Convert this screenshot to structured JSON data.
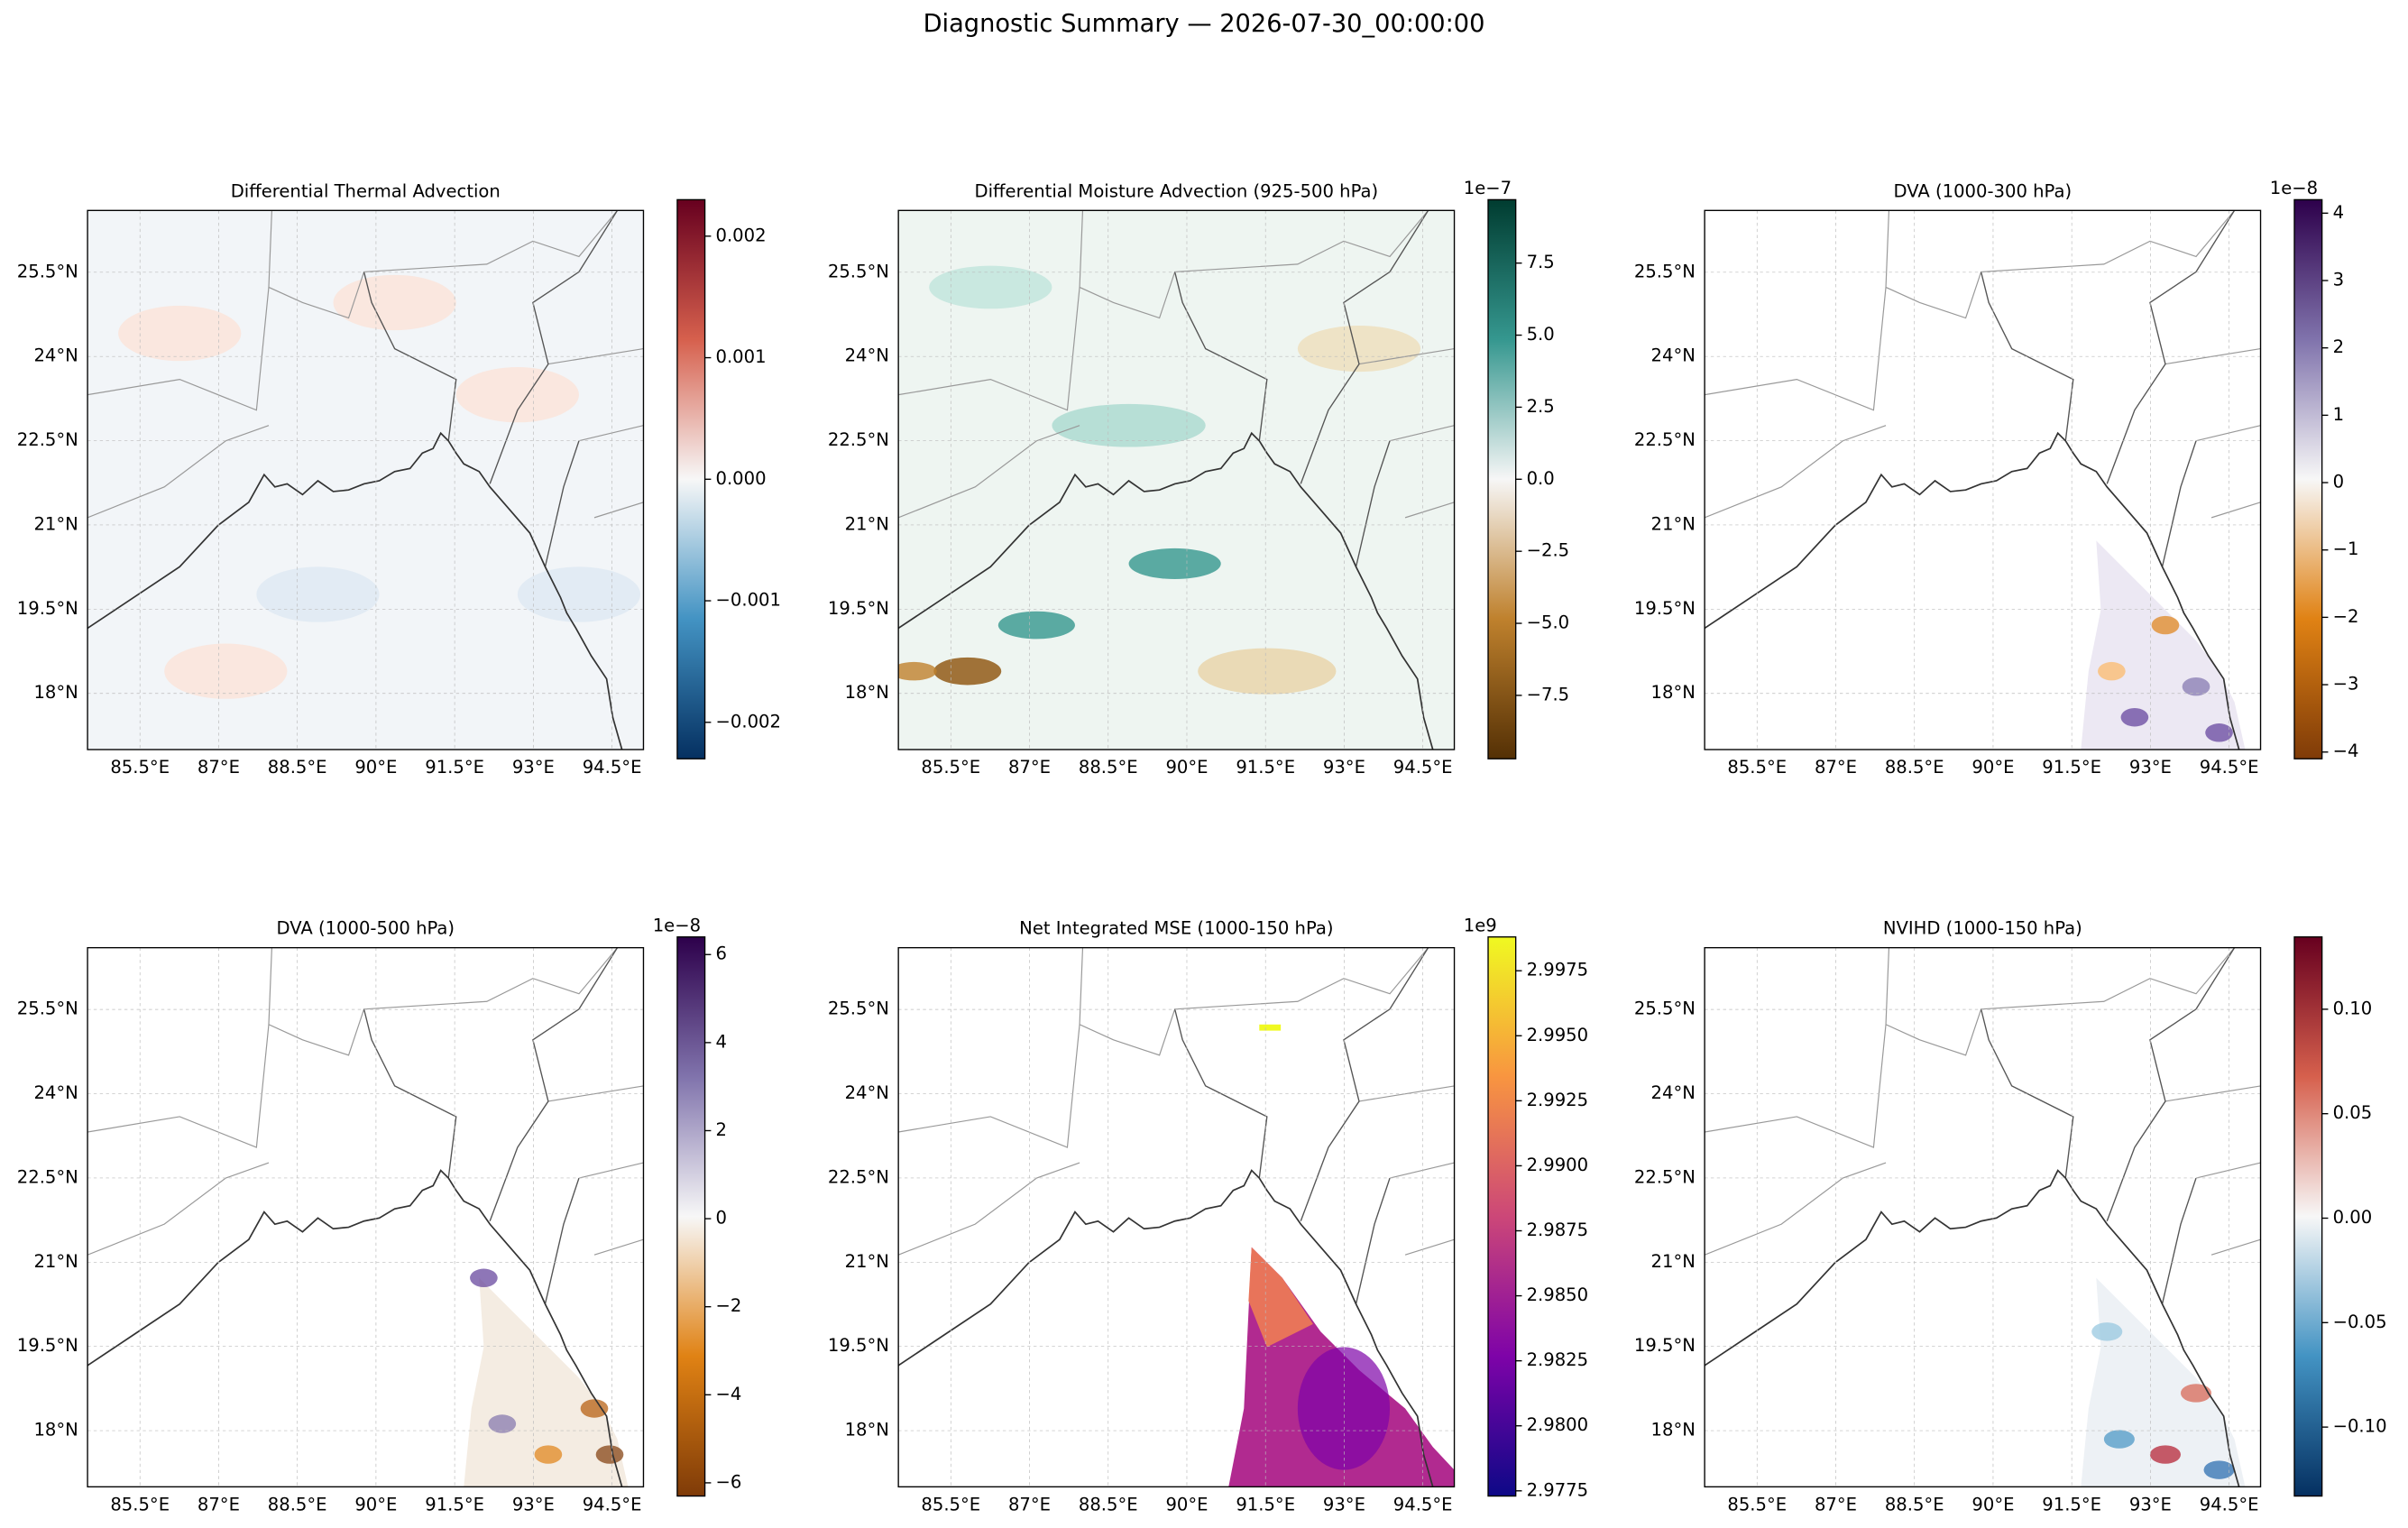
{
  "title": "Diagnostic Summary — 2026-07-30_00:00:00",
  "chart_data": [
    {
      "type": "map",
      "title": "Differential Thermal Advection",
      "xlim": [
        84.5,
        95.1
      ],
      "ylim": [
        17.0,
        26.6
      ],
      "xticks": [
        {
          "value": 85.5,
          "label": "85.5°E"
        },
        {
          "value": 87,
          "label": "87°E"
        },
        {
          "value": 88.5,
          "label": "88.5°E"
        },
        {
          "value": 90,
          "label": "90°E"
        },
        {
          "value": 91.5,
          "label": "91.5°E"
        },
        {
          "value": 93,
          "label": "93°E"
        },
        {
          "value": 94.5,
          "label": "94.5°E"
        }
      ],
      "yticks": [
        {
          "value": 18,
          "label": "18°N"
        },
        {
          "value": 19.5,
          "label": "19.5°N"
        },
        {
          "value": 21,
          "label": "21°N"
        },
        {
          "value": 22.5,
          "label": "22.5°N"
        },
        {
          "value": 24,
          "label": "24°N"
        },
        {
          "value": 25.5,
          "label": "25.5°N"
        }
      ],
      "clim": [
        -0.0023,
        0.0023
      ],
      "cticks": [
        {
          "value": -0.002,
          "label": "−0.002"
        },
        {
          "value": -0.001,
          "label": "−0.001"
        },
        {
          "value": 0,
          "label": "0.000"
        },
        0.001,
        0.002
      ],
      "cmap": [
        "#053061",
        "#4393c3",
        "#f7f7f7",
        "#d6604d",
        "#67001f"
      ]
    },
    {
      "type": "map",
      "title": "Differential Moisture Advection (925-500 hPa)",
      "xlim": [
        84.5,
        95.1
      ],
      "ylim": [
        17.0,
        26.6
      ],
      "xticks": [
        {
          "value": 85.5,
          "label": "85.5°E"
        },
        {
          "value": 87,
          "label": "87°E"
        },
        {
          "value": 88.5,
          "label": "88.5°E"
        },
        {
          "value": 90,
          "label": "90°E"
        },
        {
          "value": 91.5,
          "label": "91.5°E"
        },
        {
          "value": 93,
          "label": "93°E"
        },
        {
          "value": 94.5,
          "label": "94.5°E"
        }
      ],
      "yticks": [
        {
          "value": 18,
          "label": "18°N"
        },
        {
          "value": 19.5,
          "label": "19.5°N"
        },
        {
          "value": 21,
          "label": "21°N"
        },
        {
          "value": 22.5,
          "label": "22.5°N"
        },
        {
          "value": 24,
          "label": "24°N"
        },
        {
          "value": 25.5,
          "label": "25.5°N"
        }
      ],
      "clim": [
        -9.7,
        9.7
      ],
      "offset_label": "1e−7",
      "cticks": [
        {
          "value": -7.5,
          "label": "−7.5"
        },
        {
          "value": -5,
          "label": "−5.0"
        },
        {
          "value": -2.5,
          "label": "−2.5"
        },
        {
          "value": 0,
          "label": "0.0"
        },
        2.5,
        {
          "value": 5,
          "label": "5.0"
        },
        7.5
      ],
      "cmap": [
        "#543005",
        "#bf812d",
        "#f6f6f6",
        "#35978f",
        "#003c30"
      ]
    },
    {
      "type": "map",
      "title": "DVA (1000-300 hPa)",
      "xlim": [
        84.5,
        95.1
      ],
      "ylim": [
        17.0,
        26.6
      ],
      "xticks": [
        {
          "value": 85.5,
          "label": "85.5°E"
        },
        {
          "value": 87,
          "label": "87°E"
        },
        {
          "value": 88.5,
          "label": "88.5°E"
        },
        {
          "value": 90,
          "label": "90°E"
        },
        {
          "value": 91.5,
          "label": "91.5°E"
        },
        {
          "value": 93,
          "label": "93°E"
        },
        {
          "value": 94.5,
          "label": "94.5°E"
        }
      ],
      "yticks": [
        {
          "value": 18,
          "label": "18°N"
        },
        {
          "value": 19.5,
          "label": "19.5°N"
        },
        {
          "value": 21,
          "label": "21°N"
        },
        {
          "value": 22.5,
          "label": "22.5°N"
        },
        {
          "value": 24,
          "label": "24°N"
        },
        {
          "value": 25.5,
          "label": "25.5°N"
        }
      ],
      "clim": [
        -4.1,
        4.2
      ],
      "offset_label": "1e−8",
      "cticks": [
        {
          "value": -4,
          "label": "−4"
        },
        {
          "value": -3,
          "label": "−3"
        },
        {
          "value": -2,
          "label": "−2"
        },
        {
          "value": -1,
          "label": "−1"
        },
        0,
        1,
        2,
        3,
        4
      ],
      "cmap": [
        "#7f3b08",
        "#e08214",
        "#f7f7f7",
        "#8073ac",
        "#2d004b"
      ]
    },
    {
      "type": "map",
      "title": "DVA (1000-500 hPa)",
      "xlim": [
        84.5,
        95.1
      ],
      "ylim": [
        17.0,
        26.6
      ],
      "xticks": [
        {
          "value": 85.5,
          "label": "85.5°E"
        },
        {
          "value": 87,
          "label": "87°E"
        },
        {
          "value": 88.5,
          "label": "88.5°E"
        },
        {
          "value": 90,
          "label": "90°E"
        },
        {
          "value": 91.5,
          "label": "91.5°E"
        },
        {
          "value": 93,
          "label": "93°E"
        },
        {
          "value": 94.5,
          "label": "94.5°E"
        }
      ],
      "yticks": [
        {
          "value": 18,
          "label": "18°N"
        },
        {
          "value": 19.5,
          "label": "19.5°N"
        },
        {
          "value": 21,
          "label": "21°N"
        },
        {
          "value": 22.5,
          "label": "22.5°N"
        },
        {
          "value": 24,
          "label": "24°N"
        },
        {
          "value": 25.5,
          "label": "25.5°N"
        }
      ],
      "clim": [
        -6.3,
        6.4
      ],
      "offset_label": "1e−8",
      "cticks": [
        {
          "value": -6,
          "label": "−6"
        },
        {
          "value": -4,
          "label": "−4"
        },
        {
          "value": -2,
          "label": "−2"
        },
        0,
        2,
        4,
        6
      ],
      "cmap": [
        "#7f3b08",
        "#e08214",
        "#f7f7f7",
        "#8073ac",
        "#2d004b"
      ]
    },
    {
      "type": "map",
      "title": "Net Integrated MSE (1000-150 hPa)",
      "xlim": [
        84.5,
        95.1
      ],
      "ylim": [
        17.0,
        26.6
      ],
      "xticks": [
        {
          "value": 85.5,
          "label": "85.5°E"
        },
        {
          "value": 87,
          "label": "87°E"
        },
        {
          "value": 88.5,
          "label": "88.5°E"
        },
        {
          "value": 90,
          "label": "90°E"
        },
        {
          "value": 91.5,
          "label": "91.5°E"
        },
        {
          "value": 93,
          "label": "93°E"
        },
        {
          "value": 94.5,
          "label": "94.5°E"
        }
      ],
      "yticks": [
        {
          "value": 18,
          "label": "18°N"
        },
        {
          "value": 19.5,
          "label": "19.5°N"
        },
        {
          "value": 21,
          "label": "21°N"
        },
        {
          "value": 22.5,
          "label": "22.5°N"
        },
        {
          "value": 24,
          "label": "24°N"
        },
        {
          "value": 25.5,
          "label": "25.5°N"
        }
      ],
      "clim": [
        2.9773,
        2.9988
      ],
      "offset_label": "1e9",
      "cticks": [
        2.9775,
        {
          "value": 2.98,
          "label": "2.9800"
        },
        2.9825,
        {
          "value": 2.985,
          "label": "2.9850"
        },
        2.9875,
        {
          "value": 2.99,
          "label": "2.9900"
        },
        2.9925,
        {
          "value": 2.995,
          "label": "2.9950"
        },
        2.9975
      ],
      "cmap": [
        "#0d0887",
        "#7e03a8",
        "#cc4778",
        "#f89540",
        "#f0f921"
      ]
    },
    {
      "type": "map",
      "title": "NVIHD (1000-150 hPa)",
      "xlim": [
        84.5,
        95.1
      ],
      "ylim": [
        17.0,
        26.6
      ],
      "xticks": [
        {
          "value": 85.5,
          "label": "85.5°E"
        },
        {
          "value": 87,
          "label": "87°E"
        },
        {
          "value": 88.5,
          "label": "88.5°E"
        },
        {
          "value": 90,
          "label": "90°E"
        },
        {
          "value": 91.5,
          "label": "91.5°E"
        },
        {
          "value": 93,
          "label": "93°E"
        },
        {
          "value": 94.5,
          "label": "94.5°E"
        }
      ],
      "yticks": [
        {
          "value": 18,
          "label": "18°N"
        },
        {
          "value": 19.5,
          "label": "19.5°N"
        },
        {
          "value": 21,
          "label": "21°N"
        },
        {
          "value": 22.5,
          "label": "22.5°N"
        },
        {
          "value": 24,
          "label": "24°N"
        },
        {
          "value": 25.5,
          "label": "25.5°N"
        }
      ],
      "clim": [
        -0.133,
        0.1346
      ],
      "cticks": [
        {
          "value": -0.1,
          "label": "−0.10"
        },
        {
          "value": -0.05,
          "label": "−0.05"
        },
        {
          "value": 0,
          "label": "0.00"
        },
        {
          "value": 0.05,
          "label": "0.05"
        },
        {
          "value": 0.1,
          "label": "0.10"
        }
      ],
      "cmap": [
        "#053061",
        "#4393c3",
        "#f7f7f7",
        "#d6604d",
        "#67001f"
      ]
    }
  ]
}
